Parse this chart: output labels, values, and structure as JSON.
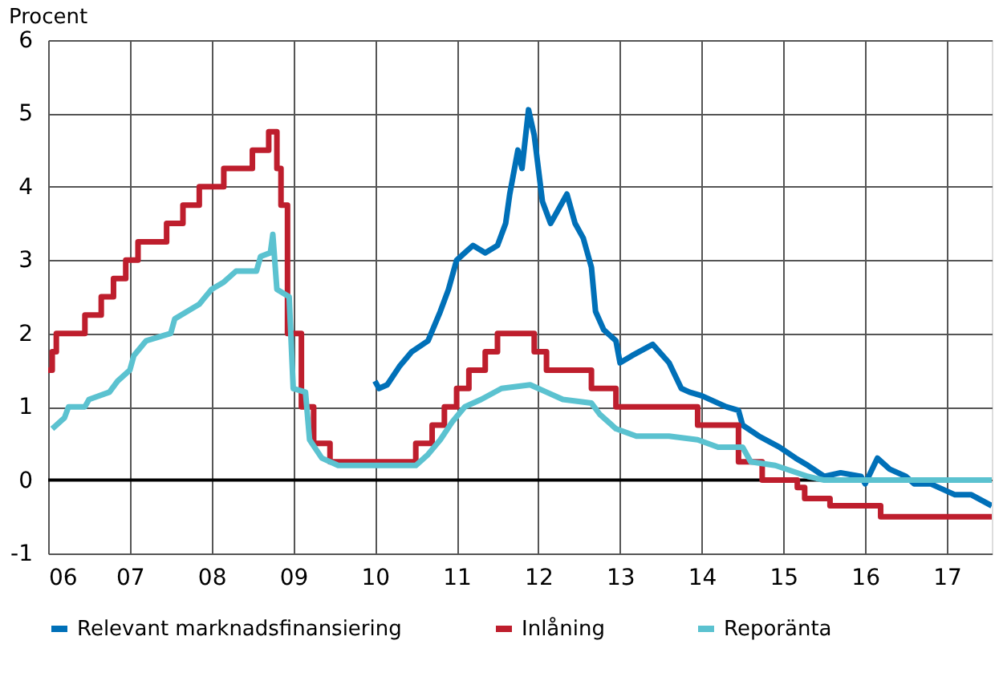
{
  "chart_data": {
    "type": "line",
    "ylabel": "Procent",
    "xlim": [
      2006,
      2017.55
    ],
    "ylim": [
      -1,
      6
    ],
    "xticks": [
      {
        "value": 2006,
        "label": "06"
      },
      {
        "value": 2007,
        "label": "07"
      },
      {
        "value": 2008,
        "label": "08"
      },
      {
        "value": 2009,
        "label": "09"
      },
      {
        "value": 2010,
        "label": "10"
      },
      {
        "value": 2011,
        "label": "11"
      },
      {
        "value": 2012,
        "label": "12"
      },
      {
        "value": 2013,
        "label": "13"
      },
      {
        "value": 2014,
        "label": "14"
      },
      {
        "value": 2015,
        "label": "15"
      },
      {
        "value": 2016,
        "label": "16"
      },
      {
        "value": 2017,
        "label": "17"
      }
    ],
    "yticks": [
      -1,
      0,
      1,
      2,
      3,
      4,
      5,
      6
    ],
    "grid": true,
    "legend": "bottom",
    "ref_lines": [
      {
        "axis": "y",
        "value": 0,
        "color": "#000000"
      }
    ],
    "series": [
      {
        "name": "Relevant marknadsfinansiering",
        "color": "#0070b8",
        "type": "line",
        "x": [
          2010.0,
          2010.05,
          2010.15,
          2010.3,
          2010.45,
          2010.65,
          2010.8,
          2010.9,
          2011.0,
          2011.1,
          2011.2,
          2011.35,
          2011.5,
          2011.6,
          2011.65,
          2011.75,
          2011.8,
          2011.88,
          2011.95,
          2012.05,
          2012.15,
          2012.25,
          2012.35,
          2012.45,
          2012.55,
          2012.65,
          2012.7,
          2012.8,
          2012.95,
          2013.0,
          2013.15,
          2013.4,
          2013.6,
          2013.75,
          2013.85,
          2014.0,
          2014.3,
          2014.45,
          2014.5,
          2014.7,
          2014.95,
          2015.15,
          2015.3,
          2015.5,
          2015.7,
          2015.95,
          2016.0,
          2016.15,
          2016.3,
          2016.5,
          2016.6,
          2016.8,
          2017.1,
          2017.3,
          2017.55
        ],
        "values": [
          1.35,
          1.25,
          1.3,
          1.55,
          1.75,
          1.9,
          2.3,
          2.6,
          3.0,
          3.1,
          3.2,
          3.1,
          3.2,
          3.5,
          3.9,
          4.5,
          4.25,
          5.05,
          4.7,
          3.8,
          3.5,
          3.7,
          3.9,
          3.5,
          3.3,
          2.9,
          2.3,
          2.05,
          1.9,
          1.6,
          1.7,
          1.85,
          1.6,
          1.25,
          1.2,
          1.15,
          1.0,
          0.95,
          0.75,
          0.6,
          0.45,
          0.3,
          0.2,
          0.05,
          0.1,
          0.05,
          -0.05,
          0.3,
          0.15,
          0.05,
          -0.05,
          -0.05,
          -0.2,
          -0.2,
          -0.35
        ]
      },
      {
        "name": "Inlåning",
        "color": "#be1e2d",
        "type": "step",
        "x": [
          2006.0,
          2006.05,
          2006.1,
          2006.45,
          2006.65,
          2006.8,
          2006.95,
          2007.1,
          2007.45,
          2007.65,
          2007.85,
          2008.15,
          2008.5,
          2008.7,
          2008.8,
          2008.85,
          2008.93,
          2009.1,
          2009.25,
          2009.45,
          2010.45,
          2010.5,
          2010.7,
          2010.85,
          2011.0,
          2011.15,
          2011.35,
          2011.5,
          2011.95,
          2012.1,
          2012.65,
          2012.95,
          2013.95,
          2014.45,
          2014.74,
          2015.17,
          2015.26,
          2015.57,
          2016.19,
          2017.55
        ],
        "values": [
          1.5,
          1.75,
          2.0,
          2.25,
          2.5,
          2.75,
          3.0,
          3.25,
          3.5,
          3.75,
          4.0,
          4.25,
          4.5,
          4.75,
          4.25,
          3.75,
          2.0,
          1.0,
          0.5,
          0.25,
          0.25,
          0.5,
          0.75,
          1.0,
          1.25,
          1.5,
          1.75,
          2.0,
          1.75,
          1.5,
          1.25,
          1.0,
          0.75,
          0.25,
          0.0,
          -0.1,
          -0.25,
          -0.35,
          -0.5,
          -0.5
        ]
      },
      {
        "name": "Reporänta",
        "color": "#5bc2d0",
        "type": "line",
        "x": [
          2006.05,
          2006.2,
          2006.25,
          2006.45,
          2006.5,
          2006.75,
          2006.85,
          2007.0,
          2007.05,
          2007.2,
          2007.5,
          2007.55,
          2007.85,
          2008.0,
          2008.15,
          2008.3,
          2008.55,
          2008.6,
          2008.72,
          2008.75,
          2008.8,
          2008.95,
          2009.0,
          2009.15,
          2009.2,
          2009.35,
          2009.55,
          2010.0,
          2010.5,
          2010.65,
          2010.8,
          2010.95,
          2011.1,
          2011.3,
          2011.55,
          2011.9,
          2012.1,
          2012.3,
          2012.65,
          2012.75,
          2012.95,
          2013.2,
          2013.6,
          2013.95,
          2014.2,
          2014.5,
          2014.6,
          2014.9,
          2015.3,
          2015.5,
          2017.55
        ],
        "values": [
          0.7,
          0.85,
          1.0,
          1.0,
          1.1,
          1.2,
          1.35,
          1.5,
          1.7,
          1.9,
          2.0,
          2.2,
          2.4,
          2.6,
          2.7,
          2.85,
          2.85,
          3.05,
          3.1,
          3.35,
          2.6,
          2.5,
          1.25,
          1.2,
          0.55,
          0.3,
          0.2,
          0.2,
          0.2,
          0.35,
          0.55,
          0.8,
          1.0,
          1.1,
          1.25,
          1.3,
          1.2,
          1.1,
          1.05,
          0.9,
          0.7,
          0.6,
          0.6,
          0.55,
          0.45,
          0.45,
          0.25,
          0.2,
          0.05,
          0.0,
          0.0
        ]
      }
    ]
  }
}
